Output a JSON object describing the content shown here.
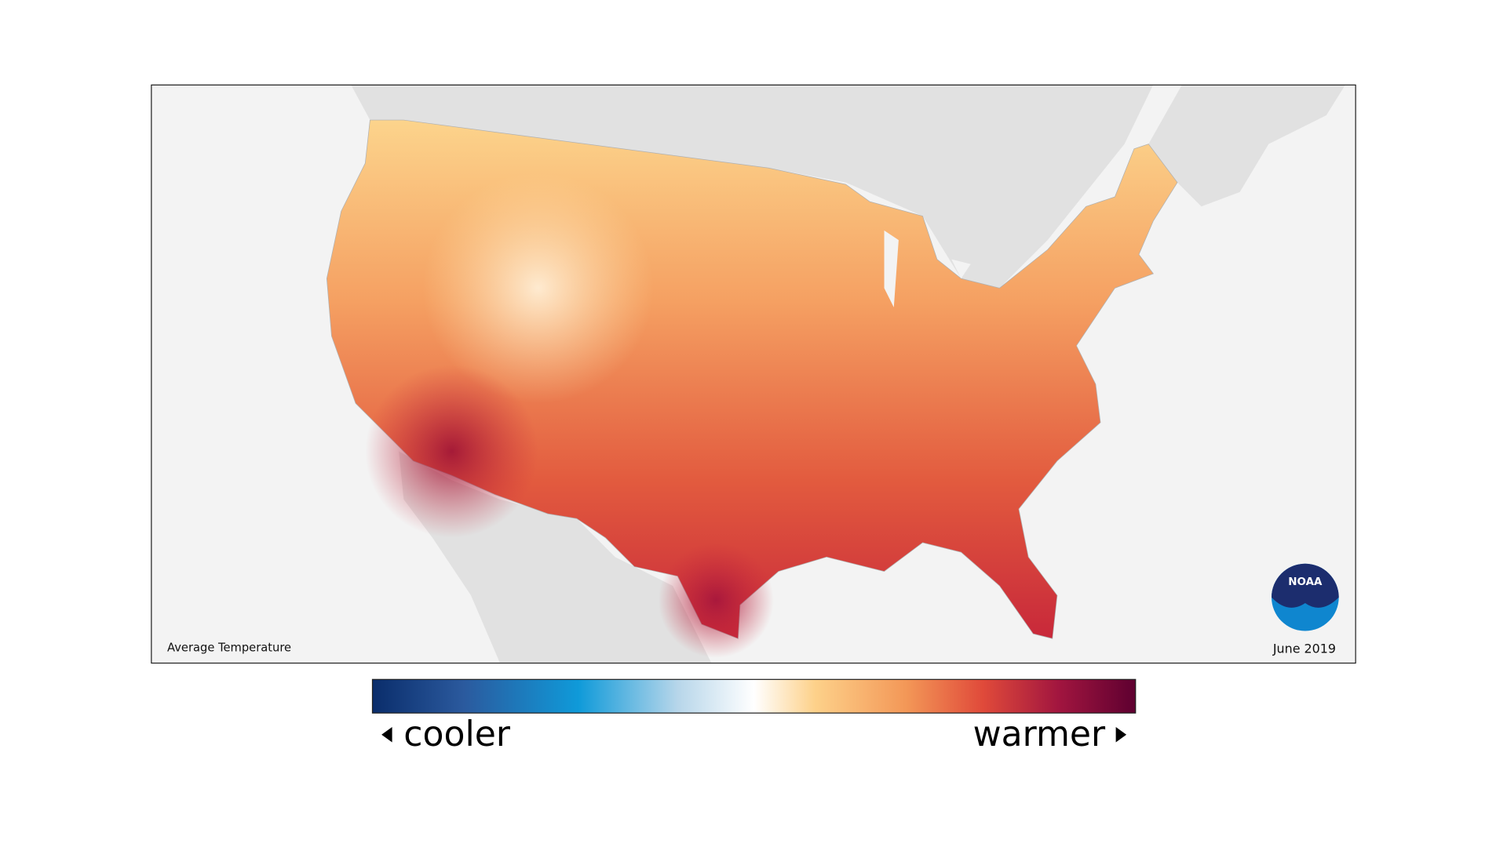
{
  "map": {
    "caption": "Average Temperature",
    "date": "June 2019"
  },
  "logo": {
    "text": "NOAA"
  },
  "legend": {
    "low_label": "cooler",
    "high_label": "warmer"
  }
}
